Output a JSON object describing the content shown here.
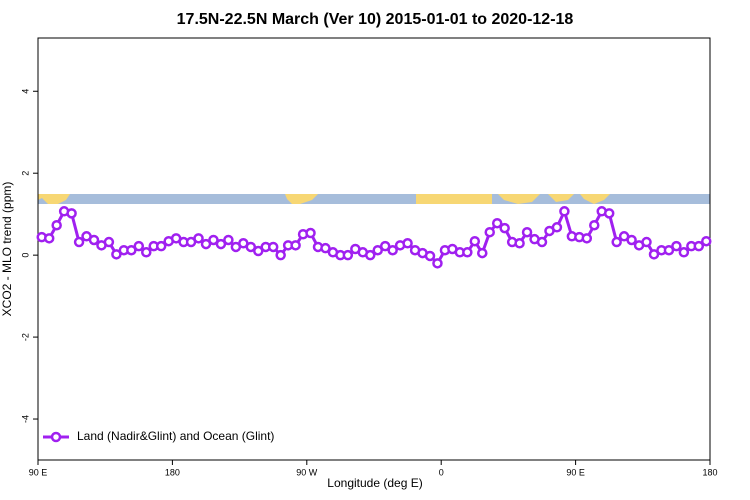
{
  "chart_data": {
    "type": "line",
    "title": "17.5N-22.5N March (Ver 10)   2015-01-01 to 2020-12-18",
    "x_label": "Longitude (deg E)",
    "y_label": "XCO2 - MLO trend (ppm)",
    "xlim": [
      90,
      540
    ],
    "ylim": [
      -5,
      5.3
    ],
    "xticks": [
      {
        "value": 90,
        "label": "90 E"
      },
      {
        "value": 180,
        "label": "180"
      },
      {
        "value": 270,
        "label": "90 W"
      },
      {
        "value": 360,
        "label": "0"
      },
      {
        "value": 450,
        "label": "90 E"
      },
      {
        "value": 540,
        "label": "180"
      }
    ],
    "yticks": [
      -4,
      -2,
      0,
      2,
      4
    ],
    "legend": "bottom-left",
    "x": [
      92.5,
      97.5,
      102.5,
      107.5,
      112.5,
      117.5,
      122.5,
      127.5,
      132.5,
      137.5,
      142.5,
      147.5,
      152.5,
      157.5,
      162.5,
      167.5,
      172.5,
      177.5,
      182.5,
      187.5,
      192.5,
      197.5,
      202.5,
      207.5,
      212.5,
      217.5,
      222.5,
      227.5,
      232.5,
      237.5,
      242.5,
      247.5,
      252.5,
      257.5,
      262.5,
      267.5,
      272.5,
      277.5,
      282.5,
      287.5,
      292.5,
      297.5,
      302.5,
      307.5,
      312.5,
      317.5,
      322.5,
      327.5,
      332.5,
      337.5,
      342.5,
      347.5,
      352.5,
      357.5,
      362.5,
      367.5,
      372.5,
      377.5,
      382.5,
      387.5,
      392.5,
      397.5,
      402.5,
      407.5,
      412.5,
      417.5,
      422.5,
      427.5,
      432.5,
      437.5,
      442.5,
      447.5,
      452.5,
      457.5,
      462.5,
      467.5,
      472.5,
      477.5,
      482.5,
      487.5,
      492.5,
      497.5,
      502.5,
      507.5,
      512.5,
      517.5,
      522.5,
      527.5,
      532.5,
      537.5
    ],
    "series": [
      {
        "name": "Land (Nadir&Glint) and Ocean (Glint)",
        "color": "#a020f0",
        "values": [
          0.44,
          0.41,
          0.73,
          1.07,
          1.02,
          0.32,
          0.46,
          0.37,
          0.24,
          0.32,
          0.02,
          0.12,
          0.12,
          0.22,
          0.07,
          0.22,
          0.22,
          0.34,
          0.41,
          0.32,
          0.32,
          0.41,
          0.27,
          0.37,
          0.27,
          0.37,
          0.2,
          0.29,
          0.2,
          0.1,
          0.2,
          0.2,
          0,
          0.24,
          0.24,
          0.51,
          0.54,
          0.2,
          0.17,
          0.07,
          0,
          0,
          0.15,
          0.07,
          0,
          0.12,
          0.22,
          0.12,
          0.24,
          0.29,
          0.12,
          0.05,
          -0.02,
          -0.2,
          0.12,
          0.15,
          0.07,
          0.07,
          0.34,
          0.05,
          0.56,
          0.78,
          0.66,
          0.32,
          0.29,
          0.56,
          0.39,
          0.32,
          0.59,
          0.68,
          1.07,
          0.46,
          0.44,
          0.41,
          0.73,
          1.07,
          1.02,
          0.32,
          0.46,
          0.37,
          0.24,
          0.32,
          0.02,
          0.12,
          0.12,
          0.22,
          0.07,
          0.22,
          0.22,
          0.34
        ]
      }
    ]
  }
}
